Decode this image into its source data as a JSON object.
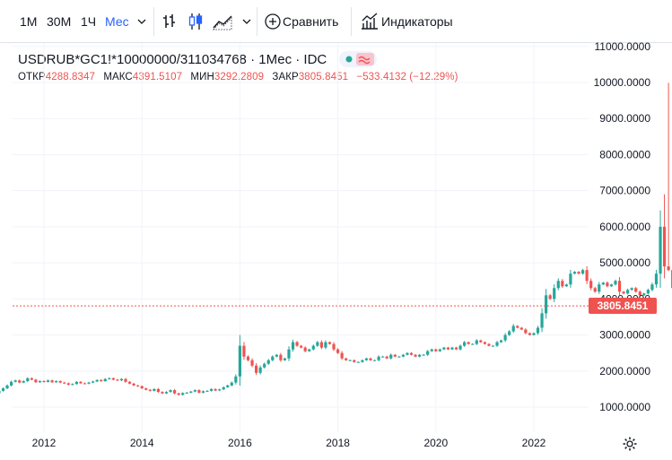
{
  "toolbar": {
    "intervals": [
      "1М",
      "30М",
      "1Ч",
      "Мес"
    ],
    "active_interval": "Мес",
    "compare_label": "Сравнить",
    "indicators_label": "Индикаторы"
  },
  "legend": {
    "symbol": "USDRUB*GC1!*10000000/311034768 · 1Мес · IDC",
    "open_label": "ОТКР",
    "open_value": "4288.8347",
    "high_label": "МАКС",
    "high_value": "4391.5107",
    "low_label": "МИН",
    "low_value": "3292.2809",
    "close_label": "ЗАКР",
    "close_value": "3805.8451",
    "change_value": "−533.4132 (−12.29%)"
  },
  "colors": {
    "up": "#26a69a",
    "down": "#ef5350",
    "text": "#131722",
    "grid": "#f0f3fa",
    "accent": "#2962ff"
  },
  "chart_data": {
    "type": "candlestick",
    "title": "USDRUB*GC1!*10000000/311034768 · 1Мес · IDC",
    "x_start": 2011.0,
    "x_step": 0.08333,
    "x_ticks": [
      "2012",
      "2014",
      "2016",
      "2018",
      "2020",
      "2022"
    ],
    "x_tick_values": [
      2012,
      2014,
      2016,
      2018,
      2020,
      2022
    ],
    "ylim": [
      500,
      11200
    ],
    "y_ticks": [
      1000,
      2000,
      3000,
      4000,
      5000,
      6000,
      7000,
      8000,
      9000,
      10000,
      11000
    ],
    "y_tick_labels": [
      "1000.0000",
      "2000.0000",
      "3000.0000",
      "4000.0000",
      "5000.0000",
      "6000.0000",
      "7000.0000",
      "8000.0000",
      "9000.0000",
      "10000.0000",
      "11000.0000"
    ],
    "last_price": 3805.8451,
    "last_price_label": "3805.8451",
    "candle_closes": [
      1380,
      1450,
      1520,
      1600,
      1700,
      1740,
      1680,
      1720,
      1800,
      1760,
      1690,
      1720,
      1700,
      1740,
      1690,
      1720,
      1680,
      1660,
      1620,
      1640,
      1700,
      1660,
      1650,
      1680,
      1710,
      1750,
      1720,
      1780,
      1800,
      1760,
      1740,
      1780,
      1700,
      1650,
      1600,
      1580,
      1520,
      1480,
      1450,
      1500,
      1420,
      1380,
      1420,
      1470,
      1380,
      1340,
      1390,
      1400,
      1430,
      1470,
      1400,
      1440,
      1450,
      1500,
      1460,
      1490,
      1550,
      1600,
      1680,
      1850,
      2700,
      2400,
      2300,
      2150,
      1950,
      2100,
      2200,
      2300,
      2400,
      2450,
      2300,
      2350,
      2600,
      2800,
      2700,
      2650,
      2550,
      2600,
      2700,
      2800,
      2650,
      2800,
      2750,
      2600,
      2500,
      2350,
      2300,
      2300,
      2250,
      2250,
      2300,
      2350,
      2300,
      2300,
      2400,
      2400,
      2350,
      2450,
      2400,
      2400,
      2450,
      2500,
      2450,
      2400,
      2450,
      2450,
      2550,
      2600,
      2550,
      2600,
      2650,
      2600,
      2650,
      2600,
      2700,
      2800,
      2750,
      2750,
      2850,
      2800,
      2750,
      2700,
      2700,
      2800,
      2850,
      3000,
      3100,
      3250,
      3200,
      3150,
      3050,
      3000,
      3050,
      3200,
      3600,
      4100,
      4000,
      4300,
      4500,
      4350,
      4400,
      4700,
      4750,
      4700,
      4800,
      4500,
      4300,
      4200,
      4400,
      4450,
      4350,
      4400,
      4500,
      4200,
      4150,
      4250,
      4300,
      4200,
      4100,
      4150,
      4250,
      4400,
      4700,
      6000,
      4900,
      4800,
      4300,
      3806
    ]
  }
}
